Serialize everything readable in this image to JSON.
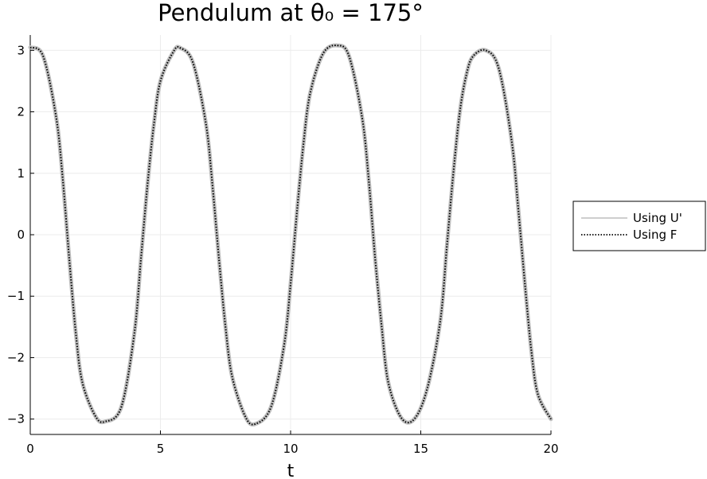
{
  "chart_data": {
    "type": "line",
    "title": "Pendulum at θ₀ = 175°",
    "xlabel": "t",
    "ylabel": "",
    "xlim": [
      0,
      20
    ],
    "ylim": [
      -3.25,
      3.25
    ],
    "xticks": [
      0,
      5,
      10,
      15,
      20
    ],
    "xtick_labels": [
      "0",
      "5",
      "10",
      "15",
      "20"
    ],
    "yticks": [
      -3,
      -2,
      -1,
      0,
      1,
      2,
      3
    ],
    "ytick_labels": [
      "−3",
      "−2",
      "−1",
      "0",
      "1",
      "2",
      "3"
    ],
    "grid": true,
    "legend_position": "outside-right",
    "series": [
      {
        "name": "Using U'",
        "style": "solid",
        "color": "#bdbdbd",
        "x": [
          0,
          0.5,
          1.0,
          1.25,
          1.5,
          1.75,
          2.0,
          2.5,
          2.88,
          3.5,
          4.0,
          4.25,
          4.5,
          4.75,
          5.0,
          5.5,
          5.76,
          6.25,
          6.75,
          7.0,
          7.25,
          7.5,
          7.75,
          8.25,
          8.64,
          9.25,
          9.75,
          10.0,
          10.25,
          10.5,
          10.75,
          11.25,
          11.8,
          12.25,
          12.75,
          13.0,
          13.25,
          13.5,
          13.75,
          14.25,
          14.75,
          15.25,
          15.75,
          16.0,
          16.25,
          16.5,
          16.75,
          17.0,
          17.5,
          18.0,
          18.5,
          18.75,
          19.0,
          19.25,
          19.5,
          20.0
        ],
        "y": [
          3.05,
          2.9,
          1.9,
          0.9,
          -0.4,
          -1.6,
          -2.4,
          -2.95,
          -3.04,
          -2.8,
          -1.6,
          -0.4,
          0.8,
          1.8,
          2.5,
          2.98,
          3.04,
          2.8,
          1.8,
          0.8,
          -0.4,
          -1.5,
          -2.3,
          -2.95,
          -3.08,
          -2.8,
          -1.8,
          -0.8,
          0.4,
          1.5,
          2.3,
          2.95,
          3.08,
          2.9,
          1.9,
          0.9,
          -0.4,
          -1.5,
          -2.4,
          -2.98,
          -3.0,
          -2.5,
          -1.4,
          -0.2,
          1.0,
          2.0,
          2.6,
          2.9,
          3.0,
          2.7,
          1.5,
          0.4,
          -0.8,
          -1.9,
          -2.6,
          -3.0
        ]
      },
      {
        "name": "Using F",
        "style": "dotted",
        "color": "#000000",
        "x": [
          0,
          0.5,
          1.0,
          1.25,
          1.5,
          1.75,
          2.0,
          2.5,
          2.88,
          3.5,
          4.0,
          4.25,
          4.5,
          4.75,
          5.0,
          5.5,
          5.76,
          6.25,
          6.75,
          7.0,
          7.25,
          7.5,
          7.75,
          8.25,
          8.64,
          9.25,
          9.75,
          10.0,
          10.25,
          10.5,
          10.75,
          11.25,
          11.8,
          12.25,
          12.75,
          13.0,
          13.25,
          13.5,
          13.75,
          14.25,
          14.75,
          15.25,
          15.75,
          16.0,
          16.25,
          16.5,
          16.75,
          17.0,
          17.5,
          18.0,
          18.5,
          18.75,
          19.0,
          19.25,
          19.5,
          20.0
        ],
        "y": [
          3.05,
          2.9,
          1.9,
          0.9,
          -0.4,
          -1.6,
          -2.4,
          -2.95,
          -3.04,
          -2.8,
          -1.6,
          -0.4,
          0.8,
          1.8,
          2.5,
          2.98,
          3.04,
          2.8,
          1.8,
          0.8,
          -0.4,
          -1.5,
          -2.3,
          -2.95,
          -3.08,
          -2.8,
          -1.8,
          -0.8,
          0.4,
          1.5,
          2.3,
          2.95,
          3.08,
          2.9,
          1.9,
          0.9,
          -0.4,
          -1.5,
          -2.4,
          -2.98,
          -3.0,
          -2.5,
          -1.4,
          -0.2,
          1.0,
          2.0,
          2.6,
          2.9,
          3.0,
          2.7,
          1.5,
          0.4,
          -0.8,
          -1.9,
          -2.6,
          -3.0
        ]
      }
    ]
  }
}
